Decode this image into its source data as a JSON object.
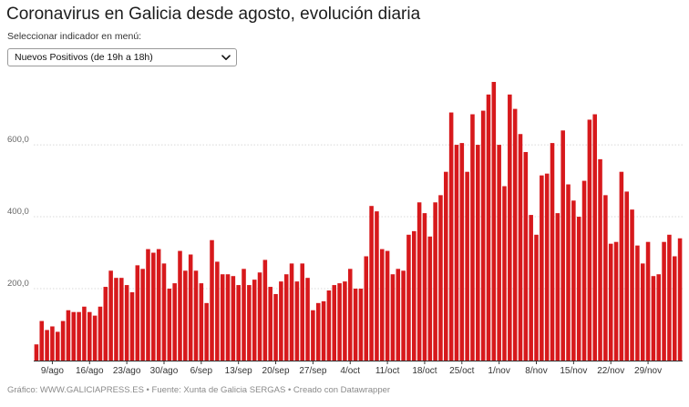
{
  "header": {
    "title": "Coronavirus en Galicia desde agosto, evolución diaria",
    "selector_label": "Seleccionar indicador en menú:"
  },
  "selector": {
    "selected": "Nuevos Positivos (de 19h a 18h)"
  },
  "footer": {
    "credit": "Gráfico: WWW.GALICIAPRESS.ES • Fuente: Xunta de Galicia SERGAS • Creado con Datawrapper"
  },
  "colors": {
    "bar": "#d7191c",
    "grid": "#d9d9d9",
    "axis": "#333333"
  },
  "chart_data": {
    "type": "bar",
    "title": "Coronavirus en Galicia desde agosto, evolución diaria",
    "xlabel": "",
    "ylabel": "",
    "ylim": [
      0,
      780
    ],
    "yticks": [
      200,
      400,
      600
    ],
    "ytick_labels": [
      "200,0",
      "400,0",
      "600,0"
    ],
    "xtick_labels": [
      "9/ago",
      "16/ago",
      "23/ago",
      "30/ago",
      "6/sep",
      "13/sep",
      "20/sep",
      "27/sep",
      "4/oct",
      "11/oct",
      "18/oct",
      "25/oct",
      "1/nov",
      "8/nov",
      "15/nov",
      "22/nov",
      "29/nov"
    ],
    "xtick_index": [
      3,
      10,
      17,
      24,
      31,
      38,
      45,
      52,
      59,
      66,
      73,
      80,
      87,
      94,
      101,
      108,
      115
    ],
    "series": [
      {
        "name": "Nuevos Positivos (de 19h a 18h)",
        "values": [
          45,
          110,
          85,
          95,
          80,
          110,
          140,
          135,
          135,
          150,
          135,
          125,
          150,
          205,
          250,
          230,
          230,
          210,
          190,
          265,
          255,
          310,
          300,
          310,
          270,
          200,
          215,
          305,
          250,
          295,
          250,
          215,
          160,
          335,
          275,
          240,
          240,
          235,
          210,
          255,
          210,
          225,
          245,
          280,
          205,
          185,
          220,
          240,
          270,
          220,
          270,
          230,
          140,
          160,
          165,
          195,
          210,
          215,
          220,
          255,
          200,
          200,
          290,
          430,
          415,
          310,
          305,
          240,
          255,
          250,
          350,
          360,
          440,
          410,
          345,
          440,
          460,
          525,
          690,
          600,
          605,
          525,
          685,
          600,
          695,
          740,
          775,
          600,
          485,
          740,
          700,
          630,
          580,
          405,
          350,
          515,
          520,
          605,
          410,
          640,
          490,
          445,
          400,
          500,
          670,
          685,
          560,
          460,
          325,
          330,
          525,
          470,
          420,
          320,
          270,
          330,
          235,
          240,
          330,
          350,
          290,
          340
        ]
      }
    ]
  }
}
